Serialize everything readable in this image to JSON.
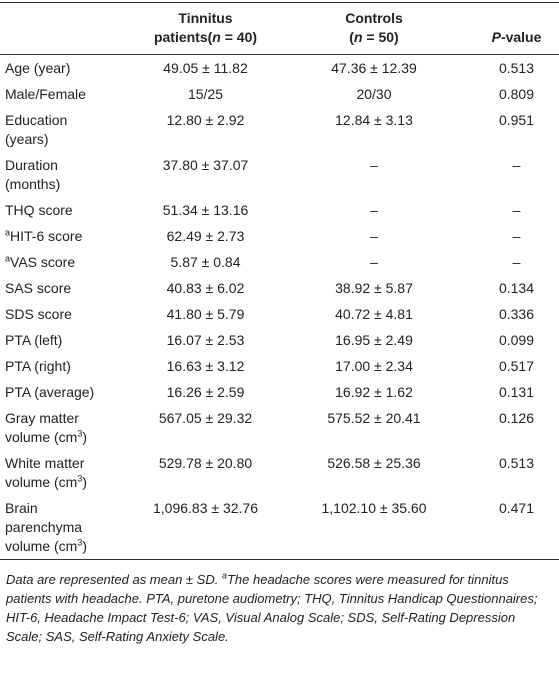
{
  "table": {
    "header": {
      "col1": [
        "Tinnitus",
        "patients(",
        "n",
        " = 40)"
      ],
      "col2": [
        "Controls",
        "(",
        "n",
        " = 50)"
      ],
      "col3": [
        "P",
        "-value"
      ]
    },
    "rows": [
      {
        "label": [
          "Age (year)"
        ],
        "cells": [
          "49.05 ± 11.82",
          "47.36 ± 12.39",
          "0.513"
        ]
      },
      {
        "label": [
          "Male/Female"
        ],
        "cells": [
          "15/25",
          "20/30",
          "0.809"
        ]
      },
      {
        "label": [
          "Education",
          "(years)"
        ],
        "cells": [
          "12.80 ± 2.92",
          "12.84 ± 3.13",
          "0.951"
        ]
      },
      {
        "label": [
          "Duration",
          "(months)"
        ],
        "cells": [
          "37.80 ± 37.07",
          "–",
          "–"
        ]
      },
      {
        "label": [
          "THQ score"
        ],
        "cells": [
          "51.34 ± 13.16",
          "–",
          "–"
        ]
      },
      {
        "label": [
          "a",
          "HIT-6 score"
        ],
        "cells": [
          "62.49 ± 2.73",
          "–",
          "–"
        ]
      },
      {
        "label": [
          "a",
          "VAS score"
        ],
        "cells": [
          "5.87 ± 0.84",
          "–",
          "–"
        ]
      },
      {
        "label": [
          "SAS score"
        ],
        "cells": [
          "40.83 ± 6.02",
          "38.92 ± 5.87",
          "0.134"
        ]
      },
      {
        "label": [
          "SDS score"
        ],
        "cells": [
          "41.80 ± 5.79",
          "40.72 ± 4.81",
          "0.336"
        ]
      },
      {
        "label": [
          "PTA (left)"
        ],
        "cells": [
          "16.07 ± 2.53",
          "16.95 ± 2.49",
          "0.099"
        ]
      },
      {
        "label": [
          "PTA (right)"
        ],
        "cells": [
          "16.63 ± 3.12",
          "17.00 ± 2.34",
          "0.517"
        ]
      },
      {
        "label": [
          "PTA (average)"
        ],
        "cells": [
          "16.26 ± 2.59",
          "16.92 ± 1.62",
          "0.131"
        ]
      },
      {
        "label": [
          "Gray matter",
          "volume (cm",
          "3",
          ")"
        ],
        "cells": [
          "567.05 ± 29.32",
          "575.52 ± 20.41",
          "0.126"
        ]
      },
      {
        "label": [
          "White matter",
          "volume (cm",
          "3",
          ")"
        ],
        "cells": [
          "529.78 ± 20.80",
          "526.58 ± 25.36",
          "0.513"
        ]
      },
      {
        "label": [
          "Brain",
          "parenchyma",
          "volume (cm",
          "3",
          ")"
        ],
        "cells": [
          "1,096.83 ± 32.76",
          "1,102.10 ± 35.60",
          "0.471"
        ]
      }
    ],
    "footnote": [
      "Data are represented as mean ± SD. ",
      "a",
      "The headache scores were measured for tinnitus patients with headache. PTA, puretone audiometry; THQ, Tinnitus Handicap Questionnaires; HIT-6, Headache Impact Test-6; VAS, Visual Analog Scale; SDS, Self-Rating Depression Scale; SAS, Self-Rating Anxiety Scale."
    ]
  }
}
